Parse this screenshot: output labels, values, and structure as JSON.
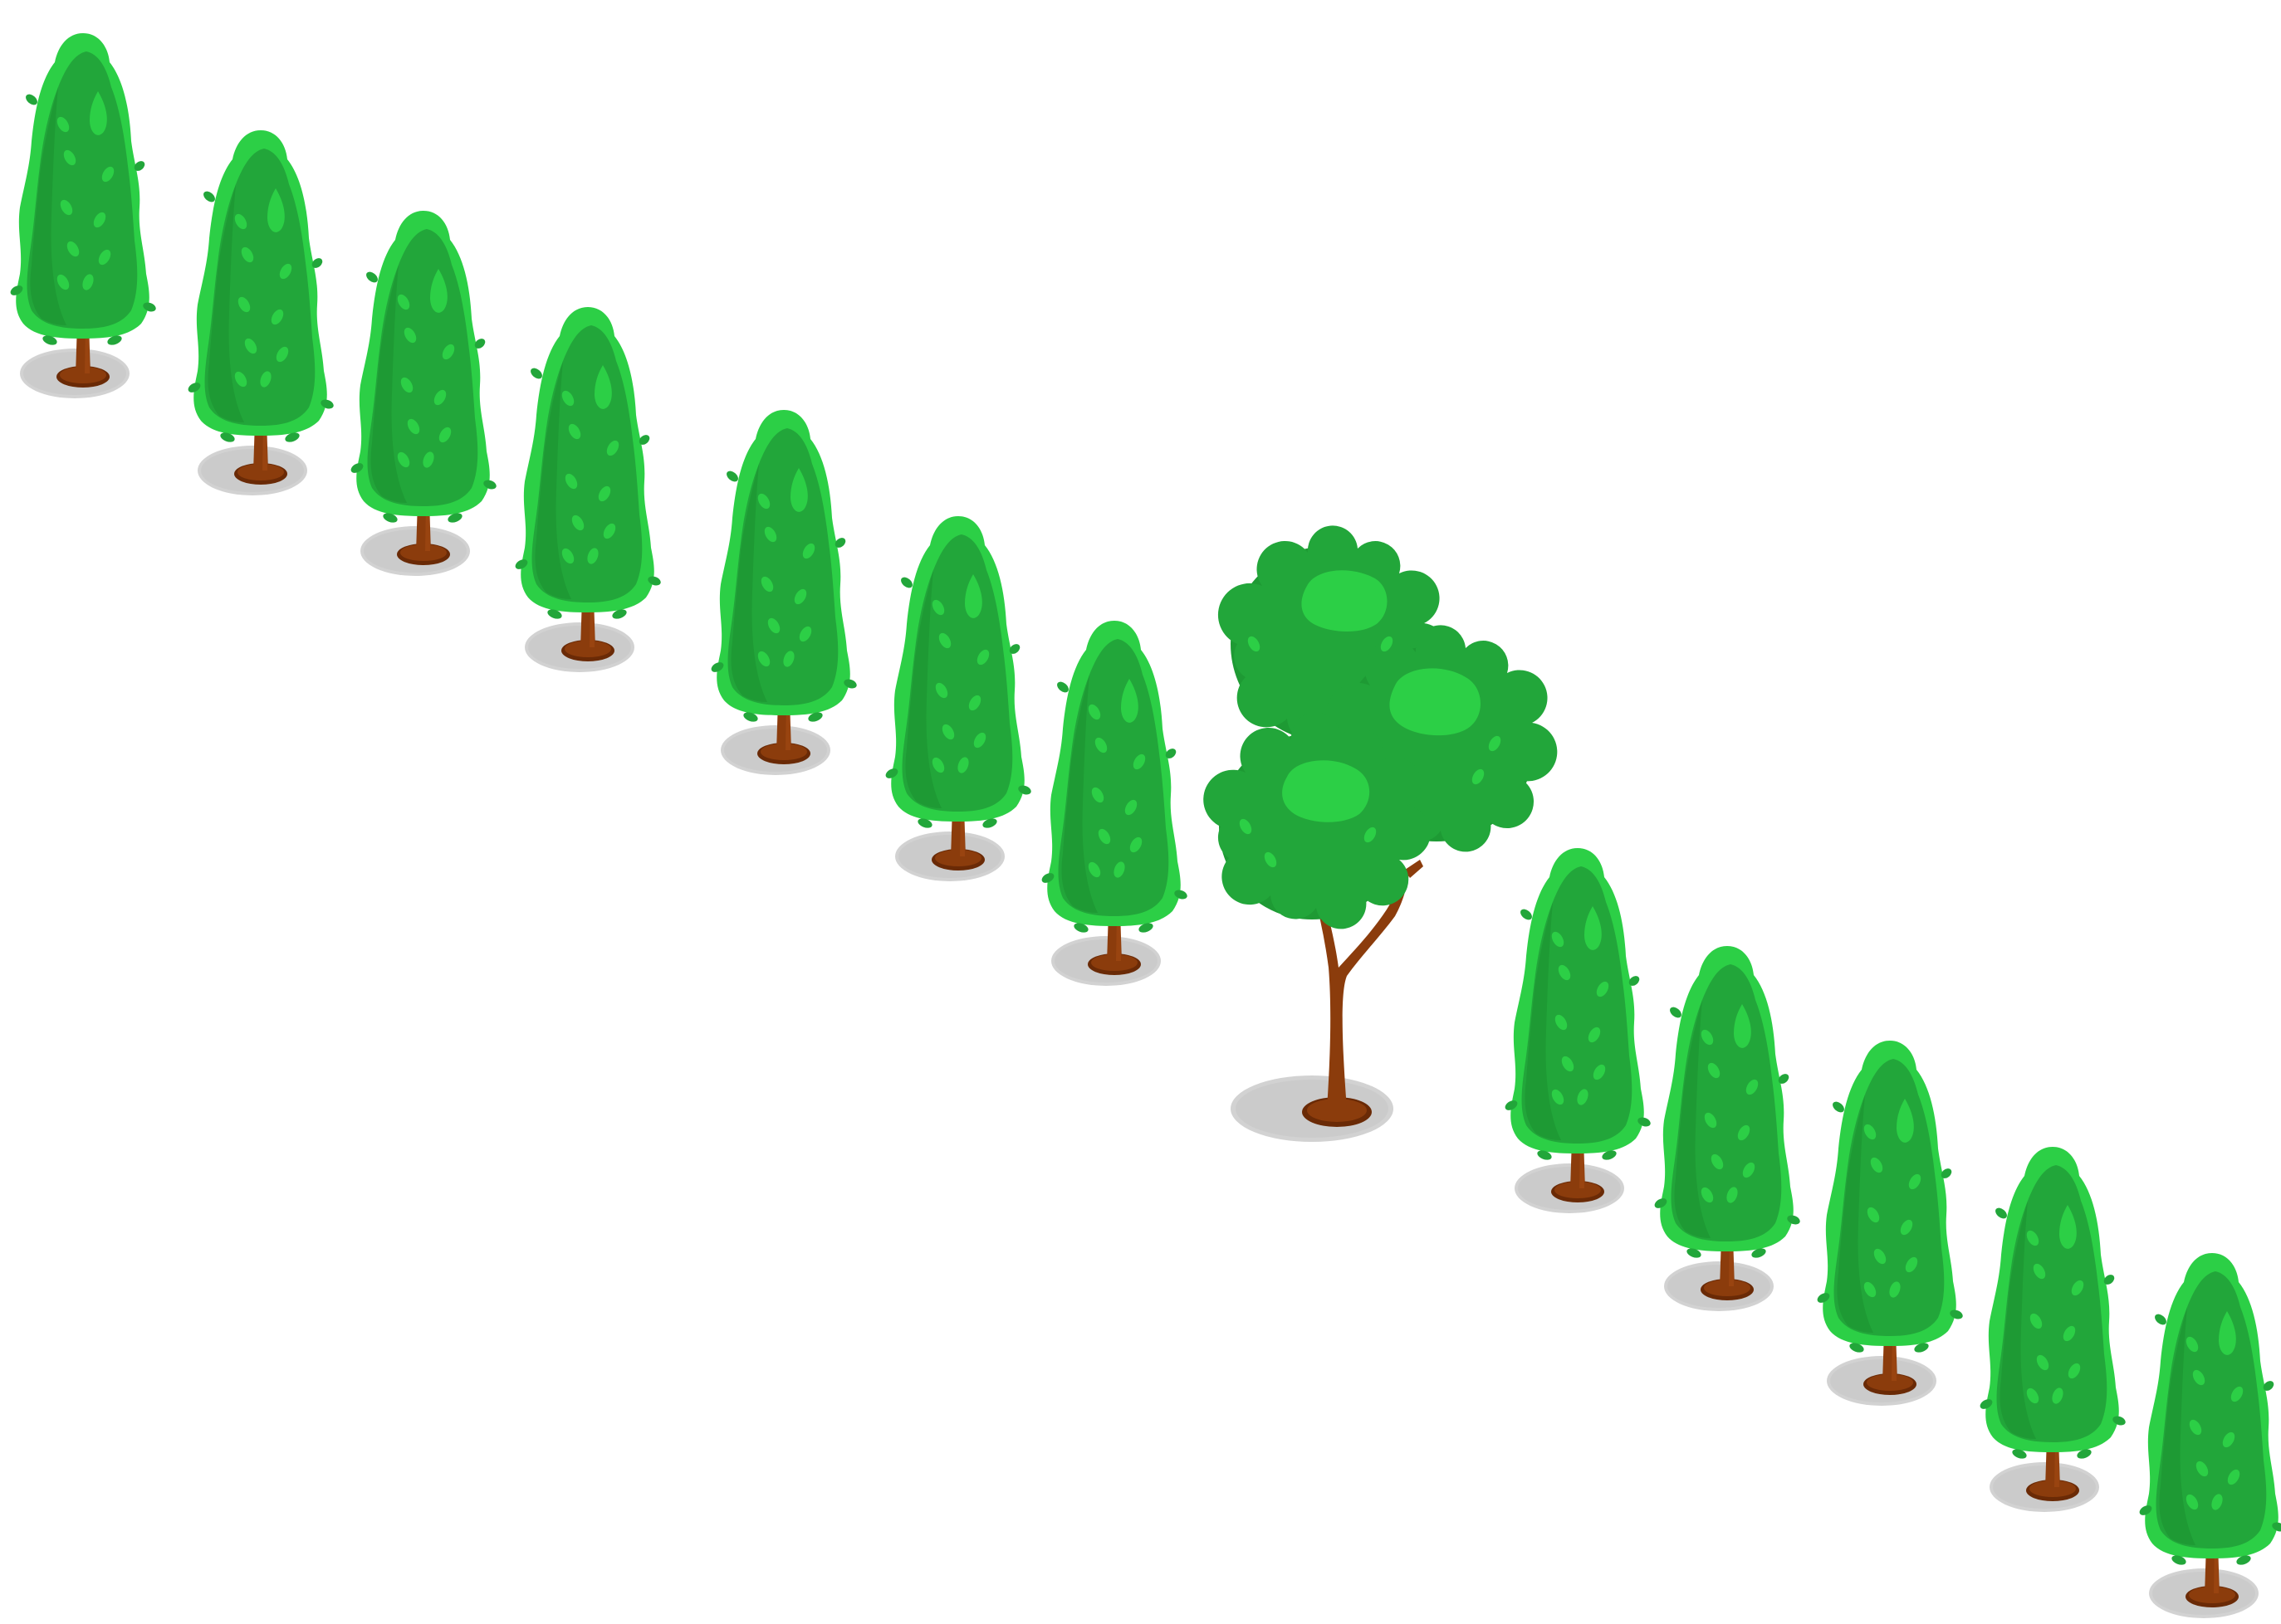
{
  "scene": {
    "background": "#ffffff",
    "colors": {
      "foliage_dark": "#1e9a34",
      "foliage_mid": "#22a63a",
      "foliage_light": "#2ccf46",
      "foliage_outline": "#1a8a2e",
      "trunk": "#8b3c0c",
      "trunk_dark": "#6a2a06",
      "shadow": "#cfcfcf"
    },
    "icons": {
      "cypress": "cypress-tree-icon",
      "oak": "oak-tree-icon"
    }
  }
}
